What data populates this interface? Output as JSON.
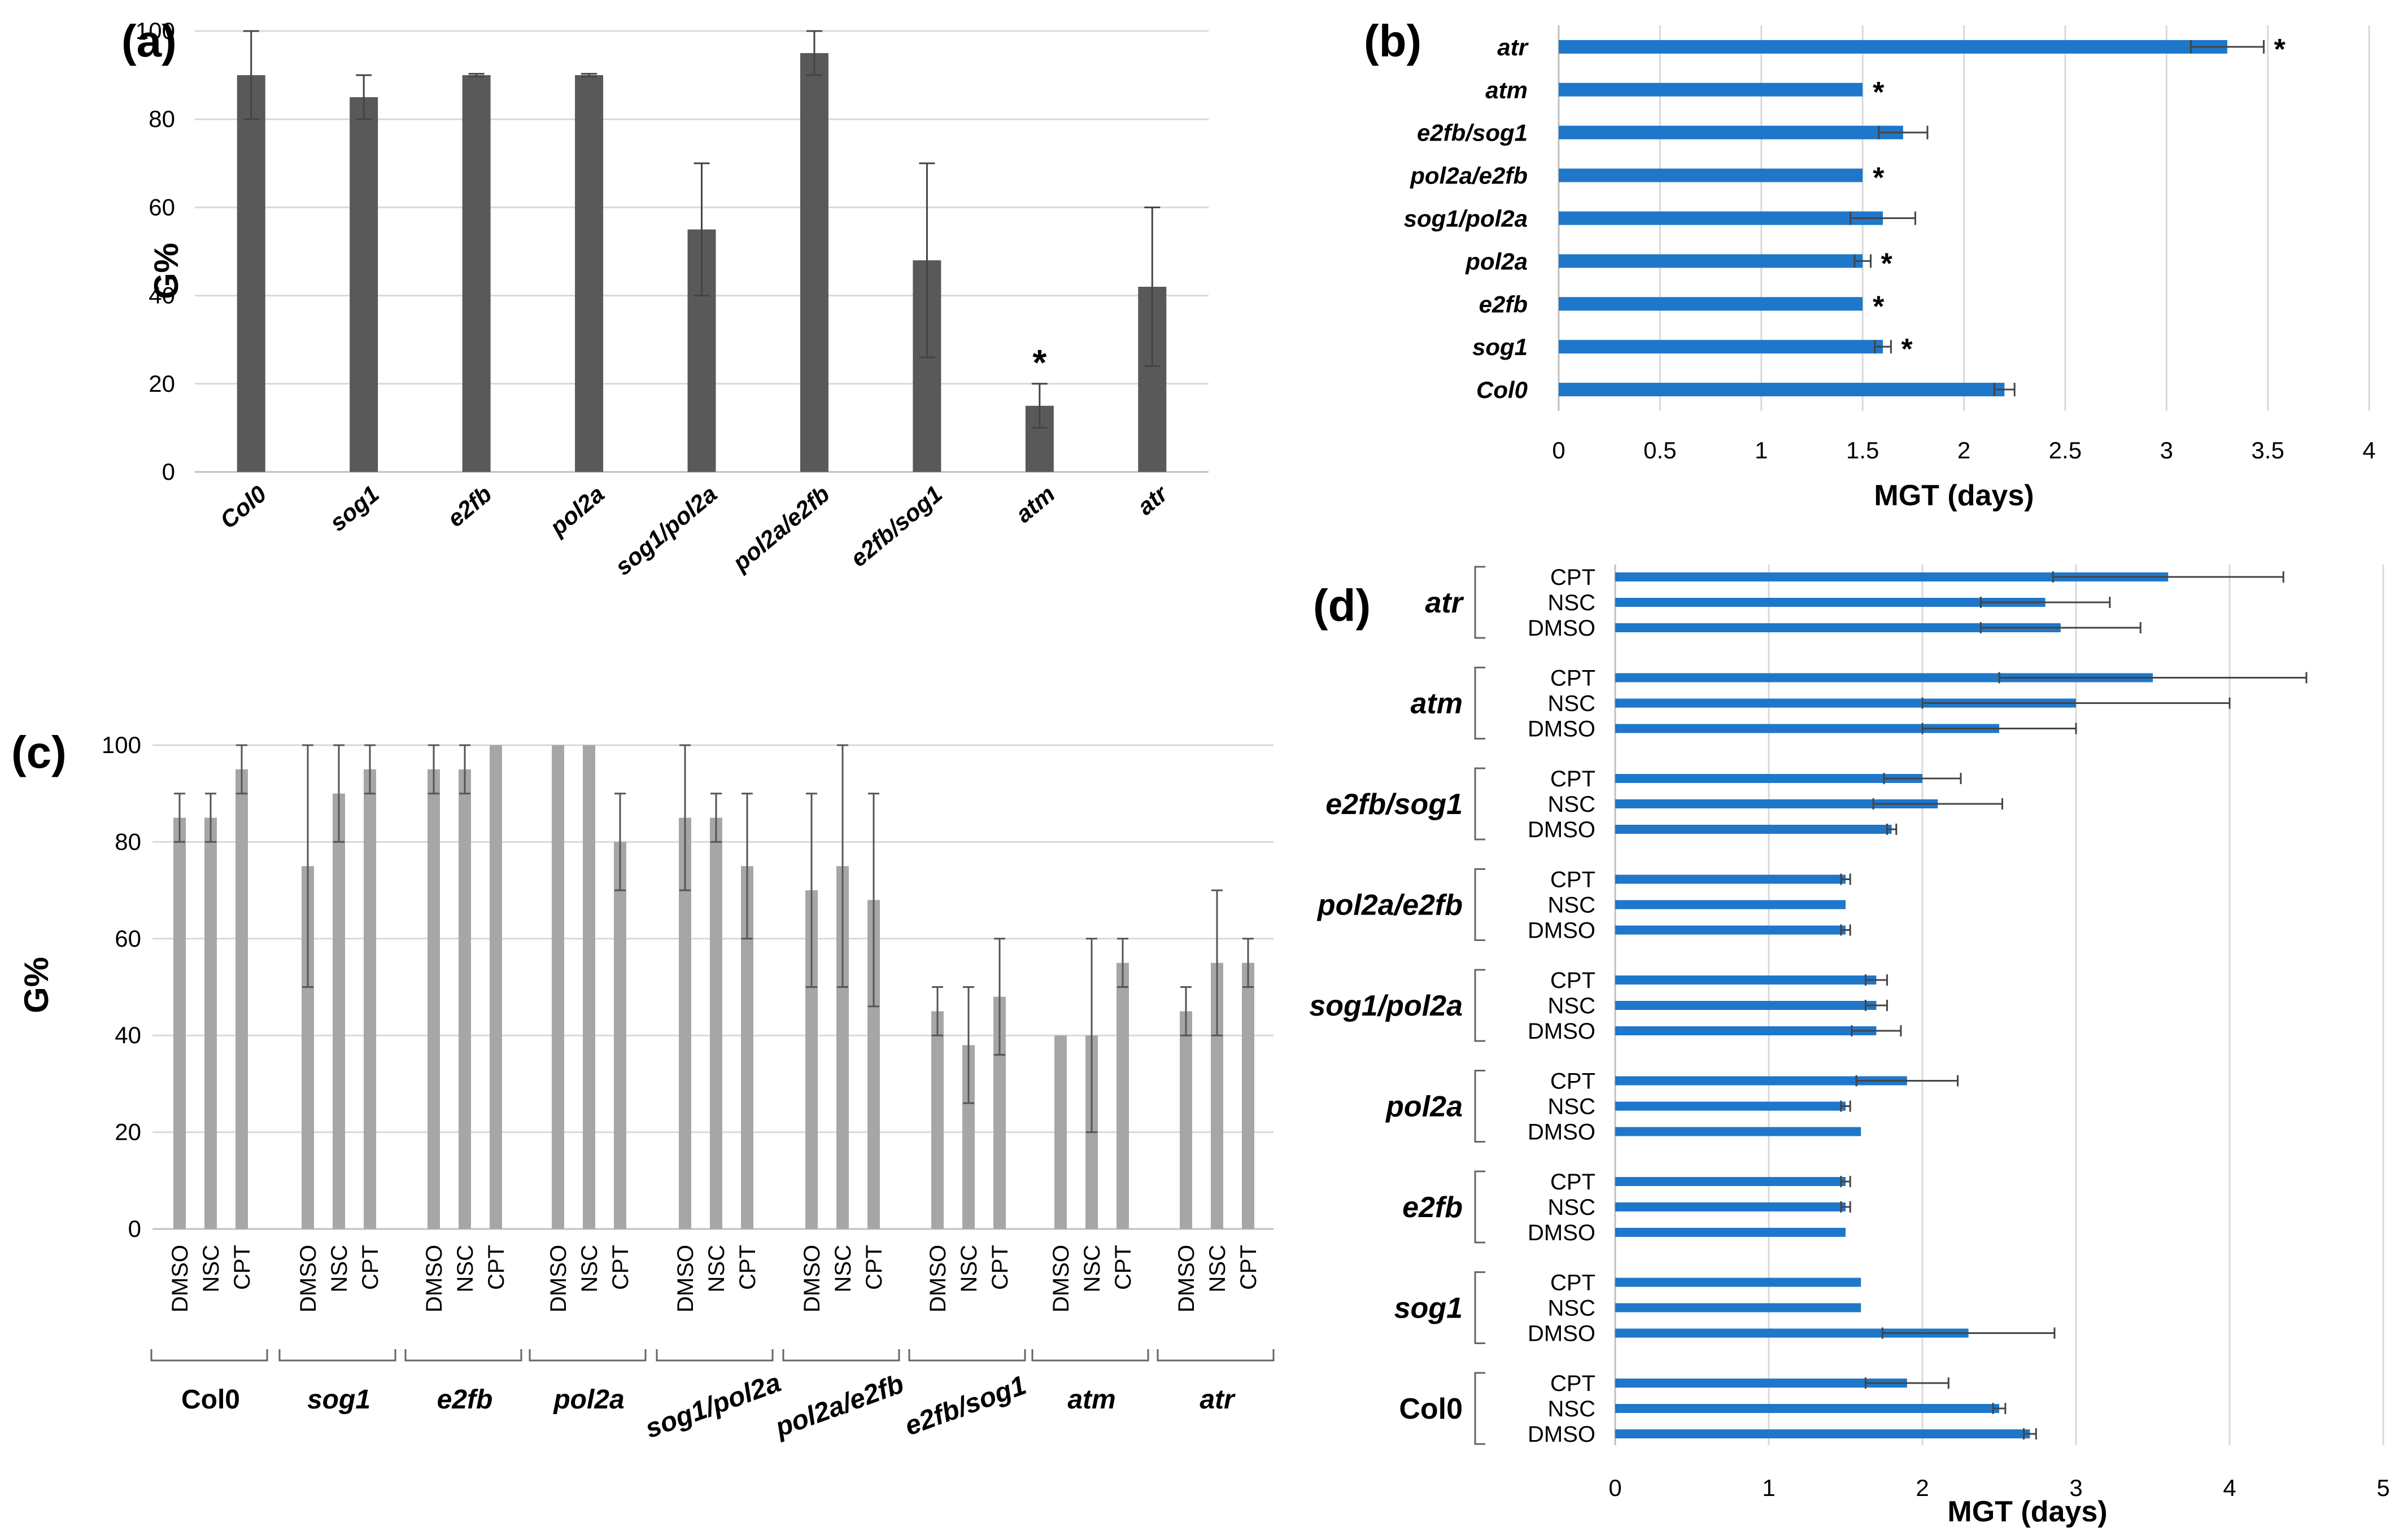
{
  "figure": {
    "panels": [
      {
        "id": "a",
        "panel_label": "(a)",
        "type": "bar",
        "orientation": "vertical",
        "categories": [
          "Col0",
          "sog1",
          "e2fb",
          "pol2a",
          "sog1/pol2a",
          "pol2a/e2fb",
          "e2fb/sog1",
          "atm",
          "atr"
        ],
        "values": [
          90,
          85,
          90,
          90,
          55,
          95,
          48,
          15,
          42
        ],
        "error": [
          10,
          5,
          0.3,
          0.3,
          15,
          5,
          22,
          5,
          18
        ],
        "significance": [
          "",
          "",
          "",
          "",
          "",
          "",
          "",
          "*",
          ""
        ],
        "ylabel": "G%",
        "ylim": [
          0,
          100
        ],
        "yticks": [
          0,
          20,
          40,
          60,
          80,
          100
        ],
        "color": "#595959"
      },
      {
        "id": "b",
        "panel_label": "(b)",
        "type": "bar",
        "orientation": "horizontal",
        "categories": [
          "atr",
          "atm",
          "e2fb/sog1",
          "pol2a/e2fb",
          "sog1/pol2a",
          "pol2a",
          "e2fb",
          "sog1",
          "Col0"
        ],
        "values": [
          3.3,
          1.5,
          1.7,
          1.5,
          1.6,
          1.5,
          1.5,
          1.6,
          2.2
        ],
        "error": [
          0.18,
          0.0,
          0.12,
          0.0,
          0.16,
          0.04,
          0.0,
          0.04,
          0.05
        ],
        "significance": [
          "*",
          "*",
          "",
          "*",
          "",
          "*",
          "*",
          "*",
          ""
        ],
        "xlabel": "MGT (days)",
        "xlim": [
          0,
          4
        ],
        "xticks": [
          0,
          0.5,
          1,
          1.5,
          2,
          2.5,
          3,
          3.5,
          4
        ],
        "color": "#1f77c9"
      },
      {
        "id": "c",
        "panel_label": "(c)",
        "type": "bar",
        "orientation": "vertical",
        "groups": [
          "Col0",
          "sog1",
          "e2fb",
          "pol2a",
          "sog1/pol2a",
          "pol2a/e2fb",
          "e2fb/sog1",
          "atm",
          "atr"
        ],
        "treatments": [
          "DMSO",
          "NSC",
          "CPT"
        ],
        "values": [
          [
            85,
            85,
            95
          ],
          [
            75,
            90,
            95
          ],
          [
            95,
            95,
            100
          ],
          [
            100,
            100,
            80
          ],
          [
            85,
            85,
            75
          ],
          [
            70,
            75,
            68
          ],
          [
            45,
            38,
            48
          ],
          [
            40,
            40,
            55
          ],
          [
            45,
            55,
            55
          ]
        ],
        "error": [
          [
            5,
            5,
            5
          ],
          [
            25,
            10,
            5
          ],
          [
            5,
            5,
            0
          ],
          [
            0,
            0,
            10
          ],
          [
            15,
            5,
            15
          ],
          [
            20,
            25,
            22
          ],
          [
            5,
            12,
            12
          ],
          [
            0,
            20,
            5
          ],
          [
            5,
            15,
            5
          ]
        ],
        "ylabel": "G%",
        "ylim": [
          0,
          100
        ],
        "yticks": [
          0,
          20,
          40,
          60,
          80,
          100
        ],
        "color": "#a6a6a6"
      },
      {
        "id": "d",
        "panel_label": "(d)",
        "type": "bar",
        "orientation": "horizontal",
        "groups": [
          "atr",
          "atm",
          "e2fb/sog1",
          "pol2a/e2fb",
          "sog1/pol2a",
          "pol2a",
          "e2fb",
          "sog1",
          "Col0"
        ],
        "treatments": [
          "CPT",
          "NSC",
          "DMSO"
        ],
        "values": [
          [
            3.6,
            2.8,
            2.9
          ],
          [
            3.5,
            3.0,
            2.5
          ],
          [
            2.0,
            2.1,
            1.8
          ],
          [
            1.5,
            1.5,
            1.5
          ],
          [
            1.7,
            1.7,
            1.7
          ],
          [
            1.9,
            1.5,
            1.6
          ],
          [
            1.5,
            1.5,
            1.5
          ],
          [
            1.6,
            1.6,
            2.3
          ],
          [
            1.9,
            2.5,
            2.7
          ]
        ],
        "error": [
          [
            0.75,
            0.42,
            0.52
          ],
          [
            1.0,
            1.0,
            0.5
          ],
          [
            0.25,
            0.42,
            0.03
          ],
          [
            0.03,
            0.0,
            0.03
          ],
          [
            0.07,
            0.07,
            0.16
          ],
          [
            0.33,
            0.03,
            0.0
          ],
          [
            0.03,
            0.03,
            0.0
          ],
          [
            0.0,
            0.0,
            0.56
          ],
          [
            0.27,
            0.04,
            0.04
          ]
        ],
        "xlabel": "MGT (days)",
        "xlim": [
          0,
          5
        ],
        "xticks": [
          0,
          1,
          2,
          3,
          4,
          5
        ],
        "color": "#1f77c9"
      }
    ]
  },
  "chart_data": [
    {
      "panel": "(a)",
      "type": "bar",
      "categories": [
        "Col0",
        "sog1",
        "e2fb",
        "pol2a",
        "sog1/pol2a",
        "pol2a/e2fb",
        "e2fb/sog1",
        "atm",
        "atr"
      ],
      "values": [
        90,
        85,
        90,
        90,
        55,
        95,
        48,
        15,
        42
      ],
      "ylabel": "G%",
      "ylim": [
        0,
        100
      ]
    },
    {
      "panel": "(b)",
      "type": "bar",
      "categories": [
        "atr",
        "atm",
        "e2fb/sog1",
        "pol2a/e2fb",
        "sog1/pol2a",
        "pol2a",
        "e2fb",
        "sog1",
        "Col0"
      ],
      "values": [
        3.3,
        1.5,
        1.7,
        1.5,
        1.6,
        1.5,
        1.5,
        1.6,
        2.2
      ],
      "xlabel": "MGT (days)",
      "xlim": [
        0,
        4
      ]
    },
    {
      "panel": "(c)",
      "type": "bar",
      "categories": [
        "Col0",
        "sog1",
        "e2fb",
        "pol2a",
        "sog1/pol2a",
        "pol2a/e2fb",
        "e2fb/sog1",
        "atm",
        "atr"
      ],
      "series": [
        {
          "name": "DMSO",
          "values": [
            85,
            75,
            95,
            100,
            85,
            70,
            45,
            40,
            45
          ]
        },
        {
          "name": "NSC",
          "values": [
            85,
            90,
            95,
            100,
            85,
            75,
            38,
            40,
            55
          ]
        },
        {
          "name": "CPT",
          "values": [
            95,
            95,
            100,
            80,
            75,
            68,
            48,
            55,
            55
          ]
        }
      ],
      "ylabel": "G%",
      "ylim": [
        0,
        100
      ]
    },
    {
      "panel": "(d)",
      "type": "bar",
      "categories": [
        "atr",
        "atm",
        "e2fb/sog1",
        "pol2a/e2fb",
        "sog1/pol2a",
        "pol2a",
        "e2fb",
        "sog1",
        "Col0"
      ],
      "series": [
        {
          "name": "CPT",
          "values": [
            3.6,
            3.5,
            2.0,
            1.5,
            1.7,
            1.9,
            1.5,
            1.6,
            1.9
          ]
        },
        {
          "name": "NSC",
          "values": [
            2.8,
            3.0,
            2.1,
            1.5,
            1.7,
            1.5,
            1.5,
            1.6,
            2.5
          ]
        },
        {
          "name": "DMSO",
          "values": [
            2.9,
            2.5,
            1.8,
            1.5,
            1.7,
            1.6,
            1.5,
            2.3,
            2.7
          ]
        }
      ],
      "xlabel": "MGT (days)",
      "xlim": [
        0,
        5
      ]
    }
  ]
}
